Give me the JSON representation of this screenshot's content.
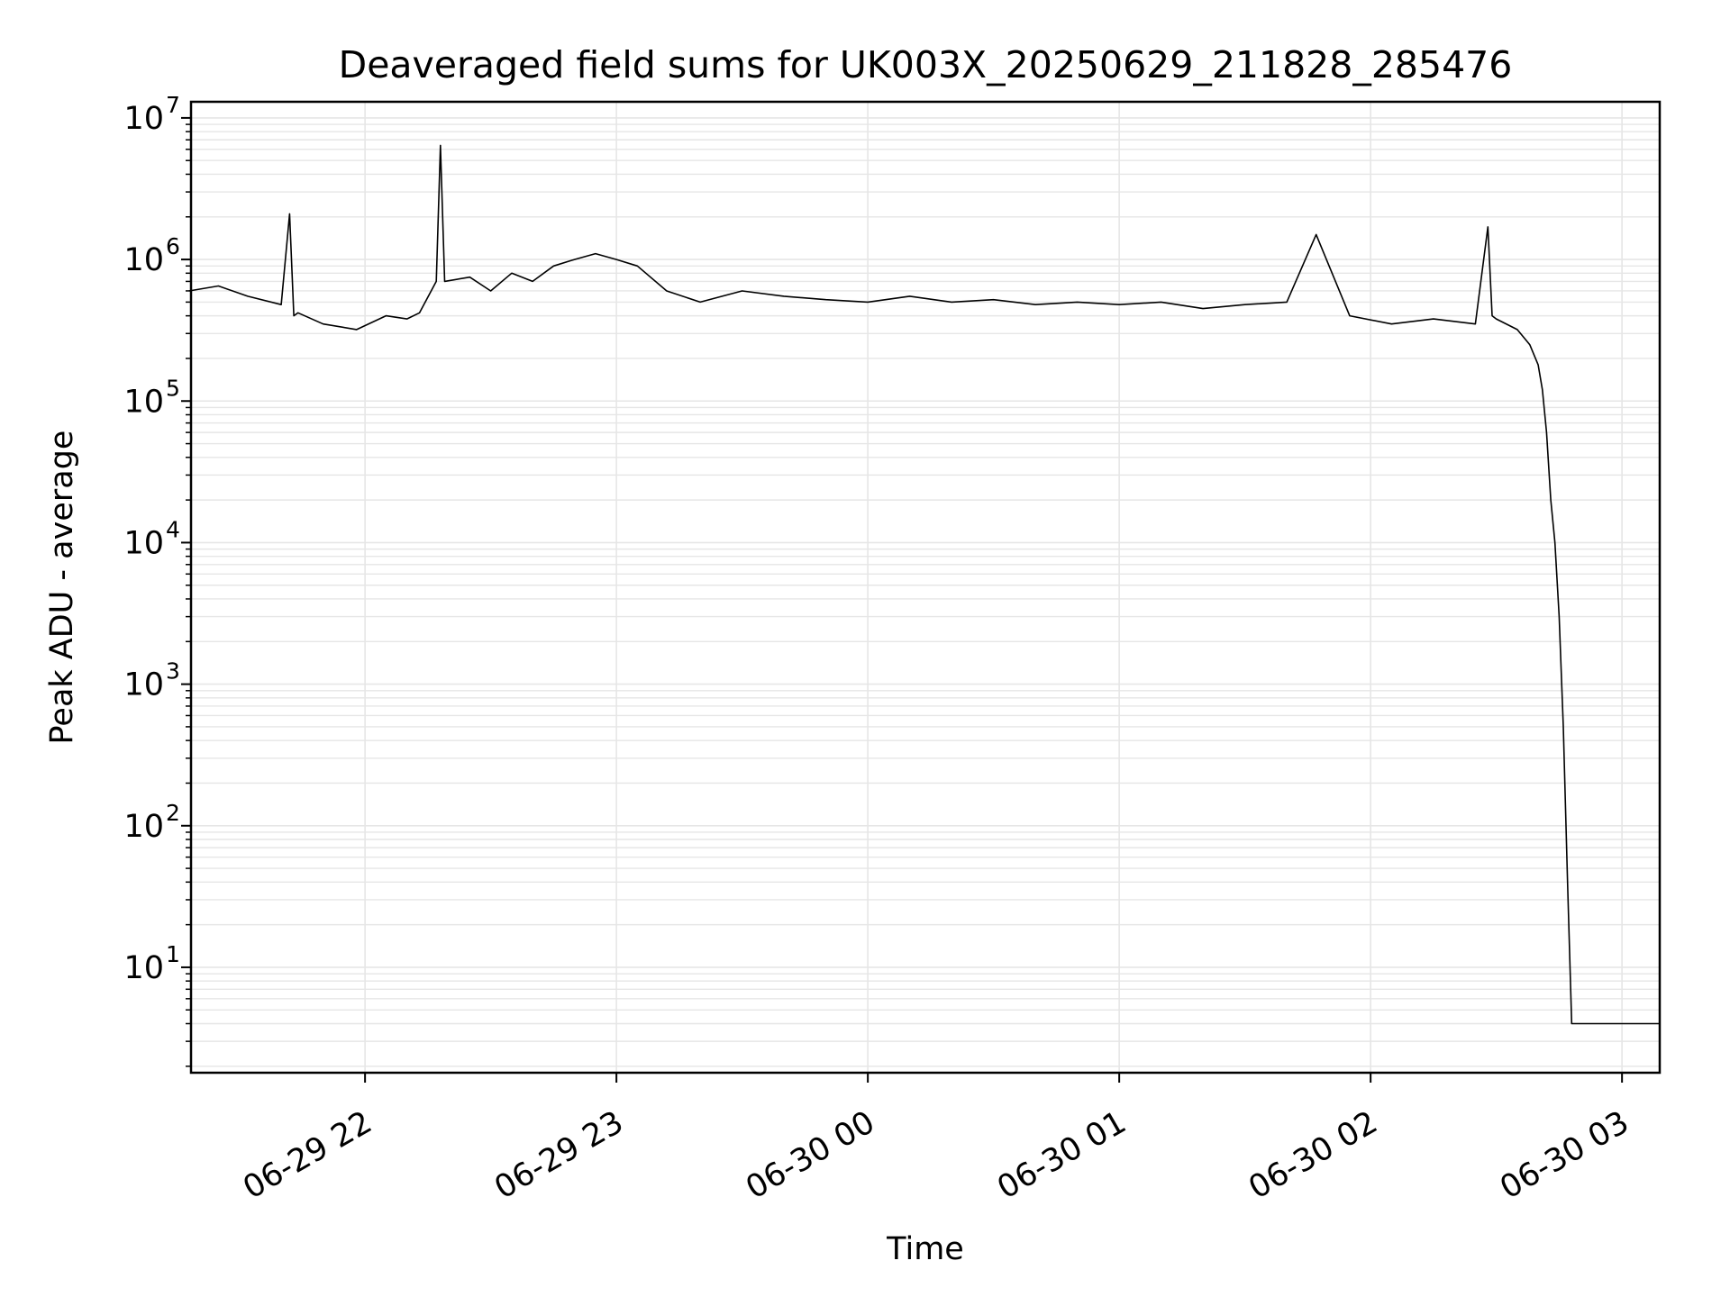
{
  "chart_data": {
    "type": "line",
    "title": "Deaveraged field sums for UK003X_20250629_211828_285476",
    "xlabel": "Time",
    "ylabel": "Peak ADU - average",
    "y_scale": "log",
    "ylim": [
      1.8,
      13000000
    ],
    "xlim": [
      "2025-06-29 21:18:28",
      "2025-06-30 03:09:00"
    ],
    "grid": true,
    "line_color": "#000000",
    "grid_color": "#e6e6e6",
    "x_ticks": [
      {
        "value": "2025-06-29 22:00",
        "label": "06-29 22"
      },
      {
        "value": "2025-06-29 23:00",
        "label": "06-29 23"
      },
      {
        "value": "2025-06-30 00:00",
        "label": "06-30 00"
      },
      {
        "value": "2025-06-30 01:00",
        "label": "06-30 01"
      },
      {
        "value": "2025-06-30 02:00",
        "label": "06-30 02"
      },
      {
        "value": "2025-06-30 03:00",
        "label": "06-30 03"
      }
    ],
    "y_ticks": [
      {
        "value": 10,
        "base": "10",
        "exp": "1"
      },
      {
        "value": 100,
        "base": "10",
        "exp": "2"
      },
      {
        "value": 1000,
        "base": "10",
        "exp": "3"
      },
      {
        "value": 10000,
        "base": "10",
        "exp": "4"
      },
      {
        "value": 100000,
        "base": "10",
        "exp": "5"
      },
      {
        "value": 1000000,
        "base": "10",
        "exp": "6"
      },
      {
        "value": 10000000,
        "base": "10",
        "exp": "7"
      }
    ],
    "series": [
      {
        "x": [
          "2025-06-29 21:18",
          "2025-06-29 21:25",
          "2025-06-29 21:32",
          "2025-06-29 21:40",
          "2025-06-29 21:42",
          "2025-06-29 21:43",
          "2025-06-29 21:44",
          "2025-06-29 21:50",
          "2025-06-29 21:58",
          "2025-06-29 22:05",
          "2025-06-29 22:10",
          "2025-06-29 22:13",
          "2025-06-29 22:17",
          "2025-06-29 22:18",
          "2025-06-29 22:19",
          "2025-06-29 22:25",
          "2025-06-29 22:30",
          "2025-06-29 22:35",
          "2025-06-29 22:40",
          "2025-06-29 22:45",
          "2025-06-29 22:50",
          "2025-06-29 22:55",
          "2025-06-29 23:00",
          "2025-06-29 23:05",
          "2025-06-29 23:12",
          "2025-06-29 23:20",
          "2025-06-29 23:30",
          "2025-06-29 23:40",
          "2025-06-29 23:50",
          "2025-06-30 00:00",
          "2025-06-30 00:10",
          "2025-06-30 00:20",
          "2025-06-30 00:30",
          "2025-06-30 00:40",
          "2025-06-30 00:50",
          "2025-06-30 01:00",
          "2025-06-30 01:10",
          "2025-06-30 01:20",
          "2025-06-30 01:30",
          "2025-06-30 01:40",
          "2025-06-30 01:47",
          "2025-06-30 01:55",
          "2025-06-30 02:05",
          "2025-06-30 02:15",
          "2025-06-30 02:25",
          "2025-06-30 02:28",
          "2025-06-30 02:29",
          "2025-06-30 02:30",
          "2025-06-30 02:35",
          "2025-06-30 02:38",
          "2025-06-30 02:40",
          "2025-06-30 02:41",
          "2025-06-30 02:42",
          "2025-06-30 02:43",
          "2025-06-30 02:44",
          "2025-06-30 02:45",
          "2025-06-30 02:46",
          "2025-06-30 02:47",
          "2025-06-30 02:48",
          "2025-06-30 02:50",
          "2025-06-30 03:00",
          "2025-06-30 03:09"
        ],
        "y": [
          600000,
          650000,
          550000,
          480000,
          2100000,
          400000,
          420000,
          350000,
          320000,
          400000,
          380000,
          420000,
          700000,
          6400000,
          700000,
          750000,
          600000,
          800000,
          700000,
          900000,
          1000000,
          1100000,
          1000000,
          900000,
          600000,
          500000,
          600000,
          550000,
          520000,
          500000,
          550000,
          500000,
          520000,
          480000,
          500000,
          480000,
          500000,
          450000,
          480000,
          500000,
          1500000,
          400000,
          350000,
          380000,
          350000,
          1700000,
          400000,
          380000,
          320000,
          250000,
          180000,
          120000,
          60000,
          20000,
          10000,
          3000,
          500,
          40,
          4,
          4,
          4,
          4
        ]
      }
    ]
  }
}
